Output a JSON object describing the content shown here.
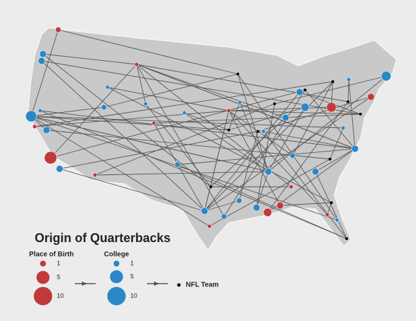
{
  "title": "Origin of Quarterbacks",
  "legend": {
    "birth": {
      "title": "Place of Birth",
      "color": "#c0393b",
      "sizes": [
        1,
        5,
        10
      ]
    },
    "college": {
      "title": "College",
      "color": "#2a87c8",
      "sizes": [
        1,
        5,
        10
      ]
    },
    "team": {
      "label": "NFL Team"
    }
  }
}
